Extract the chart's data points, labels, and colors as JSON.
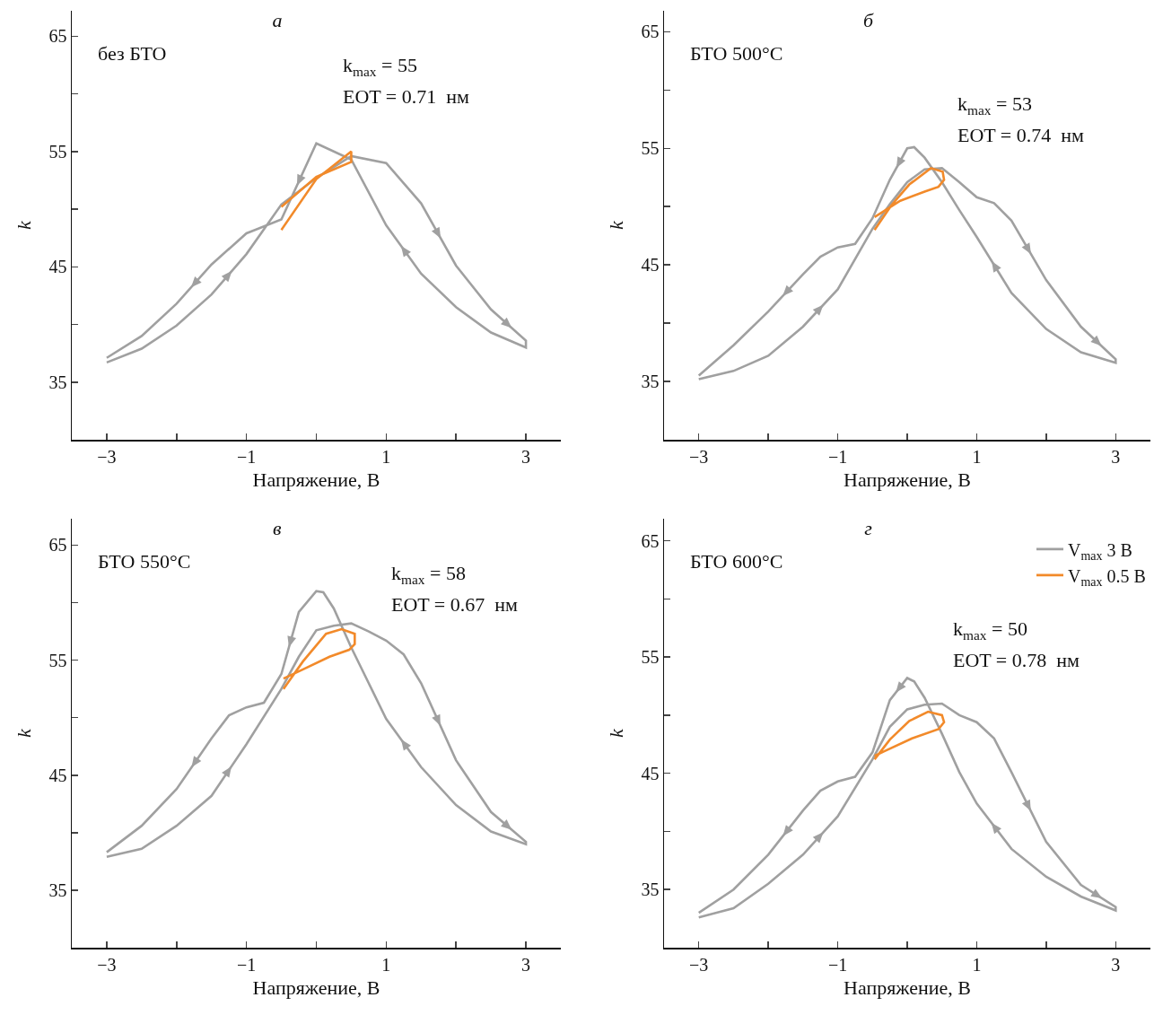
{
  "chart_data": [
    {
      "type": "line",
      "title": "а",
      "xlabel": "Напряжение, В",
      "ylabel": "k",
      "annotations": [
        "без БТО",
        "k$_{max}$ = 55",
        "EOT = 0.71  нм"
      ],
      "xlim": [
        -3.5,
        3.5
      ],
      "xticks": [
        {
          "value": -3,
          "label": "−3"
        },
        {
          "value": -2,
          "label": null
        },
        {
          "value": -1,
          "label": "−1"
        },
        {
          "value": 0,
          "label": null
        },
        {
          "value": 1,
          "label": "1"
        },
        {
          "value": 2,
          "label": null
        },
        {
          "value": 3,
          "label": "3"
        }
      ],
      "ylim": [
        30,
        67.2
      ],
      "yticks": [
        {
          "value": 35,
          "label": "35"
        },
        {
          "value": 40,
          "label": null
        },
        {
          "value": 45,
          "label": "45"
        },
        {
          "value": 50,
          "label": null
        },
        {
          "value": 55,
          "label": "55"
        },
        {
          "value": 60,
          "label": null
        },
        {
          "value": 65,
          "label": "65"
        }
      ],
      "series": [
        {
          "color": "#a0a0a0",
          "x": [
            -3,
            -2.5,
            -2,
            -1.5,
            -1,
            -0.5,
            0,
            0.5,
            1,
            1.5,
            2,
            2.5,
            3,
            3,
            2.5,
            2,
            1.5,
            1,
            0.5,
            0,
            -0.5,
            -1,
            -1.5,
            -2,
            -2.5,
            -3
          ],
          "values": [
            36.7,
            37.9,
            39.9,
            42.6,
            46.1,
            50.4,
            52.7,
            54.6,
            54.0,
            50.5,
            45.1,
            41.3,
            38.6,
            38.0,
            39.3,
            41.5,
            44.4,
            48.6,
            54.3,
            55.7,
            49.1,
            47.9,
            45.2,
            41.8,
            39.0,
            37.1
          ]
        },
        {
          "color": "#f28a2a",
          "x": [
            -0.5,
            0,
            0.5,
            0.5,
            0,
            -0.5
          ],
          "values": [
            48.2,
            52.6,
            55.0,
            54.1,
            52.8,
            50.2
          ]
        }
      ]
    },
    {
      "type": "line",
      "title": "б",
      "xlabel": "Напряжение, В",
      "ylabel": "k",
      "annotations": [
        "БТО 500°C",
        "k$_{max}$ = 53",
        "EOT = 0.74  нм"
      ],
      "xlim": [
        -3.5,
        3.5
      ],
      "xticks": [
        {
          "value": -3,
          "label": "−3"
        },
        {
          "value": -2,
          "label": null
        },
        {
          "value": -1,
          "label": "−1"
        },
        {
          "value": 0,
          "label": null
        },
        {
          "value": 1,
          "label": "1"
        },
        {
          "value": 2,
          "label": null
        },
        {
          "value": 3,
          "label": "3"
        }
      ],
      "ylim": [
        30,
        66.8
      ],
      "yticks": [
        {
          "value": 35,
          "label": "35"
        },
        {
          "value": 40,
          "label": null
        },
        {
          "value": 45,
          "label": "45"
        },
        {
          "value": 50,
          "label": null
        },
        {
          "value": 55,
          "label": "55"
        },
        {
          "value": 60,
          "label": null
        },
        {
          "value": 65,
          "label": "65"
        }
      ],
      "series": [
        {
          "color": "#a0a0a0",
          "x": [
            -3,
            -2.5,
            -2,
            -1.5,
            -1,
            -0.5,
            -0.25,
            0,
            0.25,
            0.5,
            0.75,
            1,
            1.25,
            1.5,
            2,
            2.5,
            3,
            3,
            2.5,
            2,
            1.5,
            1,
            0.75,
            0.5,
            0.25,
            0.1,
            0,
            -0.25,
            -0.5,
            -0.75,
            -1,
            -1.25,
            -1.5,
            -2,
            -2.5,
            -3
          ],
          "values": [
            35.2,
            35.9,
            37.2,
            39.7,
            42.9,
            48.1,
            50.2,
            52.1,
            53.2,
            53.3,
            52.1,
            50.8,
            50.3,
            48.8,
            43.7,
            39.7,
            36.9,
            36.6,
            37.5,
            39.5,
            42.6,
            47.4,
            49.7,
            52.1,
            54.2,
            55.1,
            55.0,
            52.3,
            49.0,
            46.8,
            46.5,
            45.7,
            44.2,
            41.0,
            38.1,
            35.5
          ]
        },
        {
          "color": "#f28a2a",
          "x": [
            -0.47,
            -0.23,
            0.03,
            0.34,
            0.51,
            0.53,
            0.45,
            0.26,
            -0.1,
            -0.47
          ],
          "values": [
            48.0,
            50.1,
            51.9,
            53.3,
            53.0,
            52.3,
            51.7,
            51.3,
            50.5,
            49.1
          ]
        }
      ]
    },
    {
      "type": "line",
      "title": "в",
      "xlabel": "Напряжение, В",
      "ylabel": "k",
      "annotations": [
        "БТО 550°C",
        "k$_{max}$ = 58",
        "EOT = 0.67  нм"
      ],
      "xlim": [
        -3.5,
        3.5
      ],
      "xticks": [
        {
          "value": -3,
          "label": "−3"
        },
        {
          "value": -2,
          "label": null
        },
        {
          "value": -1,
          "label": "−1"
        },
        {
          "value": 0,
          "label": null
        },
        {
          "value": 1,
          "label": "1"
        },
        {
          "value": 2,
          "label": null
        },
        {
          "value": 3,
          "label": "3"
        }
      ],
      "ylim": [
        30,
        67.3
      ],
      "yticks": [
        {
          "value": 35,
          "label": "35"
        },
        {
          "value": 40,
          "label": null
        },
        {
          "value": 45,
          "label": "45"
        },
        {
          "value": 50,
          "label": null
        },
        {
          "value": 55,
          "label": "55"
        },
        {
          "value": 60,
          "label": null
        },
        {
          "value": 65,
          "label": "65"
        }
      ],
      "series": [
        {
          "color": "#a0a0a0",
          "x": [
            -3,
            -2.5,
            -2,
            -1.5,
            -1,
            -0.5,
            -0.25,
            0,
            0.25,
            0.5,
            0.75,
            1,
            1.25,
            1.5,
            2,
            2.5,
            3,
            3,
            2.5,
            2,
            1.5,
            1,
            0.75,
            0.5,
            0.25,
            0.1,
            0,
            -0.25,
            -0.5,
            -0.75,
            -1,
            -1.25,
            -1.5,
            -2,
            -2.5,
            -3
          ],
          "values": [
            37.9,
            38.6,
            40.6,
            43.2,
            47.7,
            52.5,
            55.3,
            57.6,
            58.0,
            58.2,
            57.5,
            56.7,
            55.5,
            53.0,
            46.3,
            41.8,
            39.2,
            39.0,
            40.1,
            42.4,
            45.7,
            49.9,
            53.0,
            56.1,
            59.5,
            60.9,
            61.0,
            59.2,
            53.8,
            51.3,
            50.9,
            50.2,
            48.2,
            43.8,
            40.6,
            38.3
          ]
        },
        {
          "color": "#f28a2a",
          "x": [
            -0.47,
            -0.19,
            0.14,
            0.36,
            0.55,
            0.55,
            0.47,
            0.19,
            -0.19,
            -0.47
          ],
          "values": [
            52.5,
            54.9,
            57.3,
            57.7,
            57.3,
            56.4,
            55.9,
            55.3,
            54.2,
            53.4
          ]
        }
      ]
    },
    {
      "type": "line",
      "title": "г",
      "xlabel": "Напряжение, В",
      "ylabel": "k",
      "annotations": [
        "БТО 600°C",
        "k$_{max}$ = 50",
        "EOT = 0.78  нм"
      ],
      "legend": "top right",
      "xlim": [
        -3.5,
        3.5
      ],
      "xticks": [
        {
          "value": -3,
          "label": "−3"
        },
        {
          "value": -2,
          "label": null
        },
        {
          "value": -1,
          "label": "−1"
        },
        {
          "value": 0,
          "label": null
        },
        {
          "value": 1,
          "label": "1"
        },
        {
          "value": 2,
          "label": null
        },
        {
          "value": 3,
          "label": "3"
        }
      ],
      "ylim": [
        30,
        66.9
      ],
      "yticks": [
        {
          "value": 35,
          "label": "35"
        },
        {
          "value": 40,
          "label": null
        },
        {
          "value": 45,
          "label": "45"
        },
        {
          "value": 50,
          "label": null
        },
        {
          "value": 55,
          "label": "55"
        },
        {
          "value": 60,
          "label": null
        },
        {
          "value": 65,
          "label": "65"
        }
      ],
      "series": [
        {
          "name": "V$_{max}$ 3 В",
          "color": "#a0a0a0",
          "x": [
            -3,
            -2.5,
            -2,
            -1.5,
            -1,
            -0.5,
            -0.25,
            0,
            0.25,
            0.5,
            0.75,
            1,
            1.25,
            1.5,
            2,
            2.5,
            3,
            3,
            2.5,
            2,
            1.5,
            1,
            0.75,
            0.5,
            0.25,
            0.1,
            0,
            -0.25,
            -0.5,
            -0.75,
            -1,
            -1.25,
            -1.5,
            -2,
            -2.5,
            -3
          ],
          "values": [
            32.6,
            33.4,
            35.5,
            38.0,
            41.3,
            46.2,
            49.0,
            50.5,
            50.9,
            51.0,
            50.0,
            49.4,
            48.0,
            45.1,
            39.1,
            35.4,
            33.5,
            33.2,
            34.4,
            36.1,
            38.5,
            42.4,
            45.1,
            48.4,
            51.5,
            52.9,
            53.2,
            51.3,
            46.8,
            44.7,
            44.3,
            43.5,
            41.8,
            38.0,
            35.0,
            33.0
          ]
        },
        {
          "name": "V$_{max}$ 0.5 В",
          "color": "#f28a2a",
          "x": [
            -0.47,
            -0.25,
            0.03,
            0.3,
            0.5,
            0.53,
            0.45,
            0.07,
            -0.33,
            -0.47
          ],
          "values": [
            46.2,
            47.9,
            49.5,
            50.3,
            50.0,
            49.4,
            48.8,
            48.0,
            46.9,
            46.5
          ]
        }
      ]
    }
  ]
}
